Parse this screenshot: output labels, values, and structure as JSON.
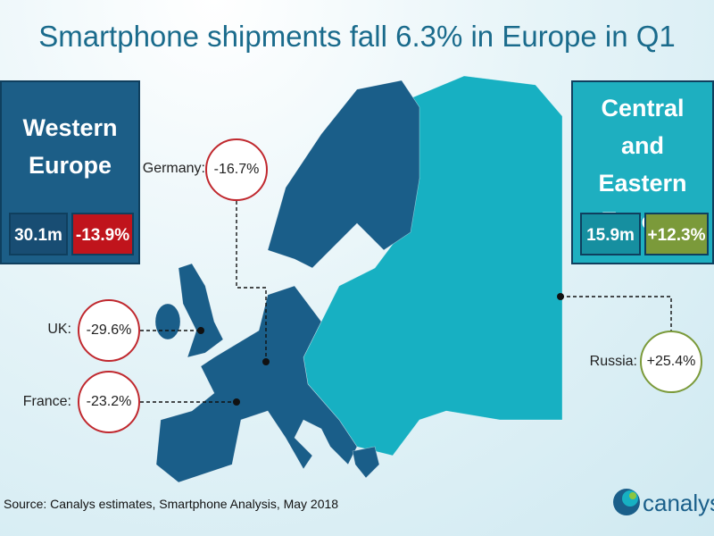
{
  "title": "Smartphone shipments fall 6.3% in Europe in Q1",
  "regions": [
    {
      "name": "Western Europe",
      "shipments": "30.1m",
      "change": "-13.9%"
    },
    {
      "name": "Central and Eastern Europe",
      "shipments": "15.9m",
      "change": "+12.3%"
    }
  ],
  "callouts": [
    {
      "country": "Germany:",
      "change": "-16.7%"
    },
    {
      "country": "UK:",
      "change": "-29.6%"
    },
    {
      "country": "France:",
      "change": "-23.2%"
    },
    {
      "country": "Russia:",
      "change": "+25.4%"
    }
  ],
  "source": "Source: Canalys estimates, Smartphone Analysis, May 2018",
  "logo": "canalys"
}
